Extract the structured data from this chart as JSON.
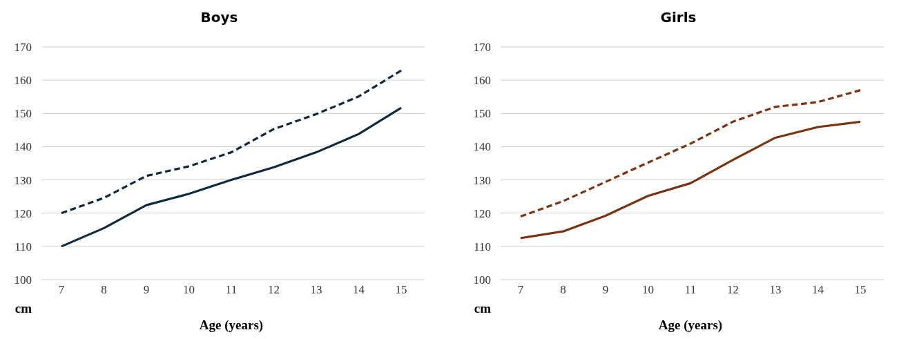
{
  "chart_data": [
    {
      "type": "line",
      "title": "Boys",
      "xlabel": "Age (years)",
      "ylabel": "cm",
      "categories": [
        "7",
        "8",
        "9",
        "10",
        "11",
        "12",
        "13",
        "14",
        "15"
      ],
      "ylim": [
        100,
        170
      ],
      "yticks": [
        100,
        110,
        120,
        130,
        140,
        150,
        160,
        170
      ],
      "grid": "y",
      "series": [
        {
          "color": "#0e2a3d",
          "line_style": "solid",
          "values": [
            110,
            115.5,
            122.4,
            125.8,
            130,
            133.8,
            138.3,
            143.8,
            151.7
          ]
        },
        {
          "color": "#0e2a3d",
          "line_style": "dashed",
          "values": [
            120,
            124.6,
            131.2,
            134.1,
            138.3,
            145.3,
            149.8,
            155.1,
            162.9
          ]
        }
      ]
    },
    {
      "type": "line",
      "title": "Girls",
      "xlabel": "Age (years)",
      "ylabel": "cm",
      "categories": [
        "7",
        "8",
        "9",
        "10",
        "11",
        "12",
        "13",
        "14",
        "15"
      ],
      "ylim": [
        100,
        170
      ],
      "yticks": [
        100,
        110,
        120,
        130,
        140,
        150,
        160,
        170
      ],
      "grid": "y",
      "series": [
        {
          "color": "#7a3311",
          "line_style": "solid",
          "values": [
            112.5,
            114.5,
            119.2,
            125.2,
            129,
            136,
            142.7,
            145.9,
            147.5
          ]
        },
        {
          "color": "#7a3311",
          "line_style": "dashed",
          "values": [
            119,
            123.6,
            129.4,
            135.2,
            140.9,
            147.5,
            152,
            153.4,
            157
          ]
        }
      ]
    }
  ]
}
